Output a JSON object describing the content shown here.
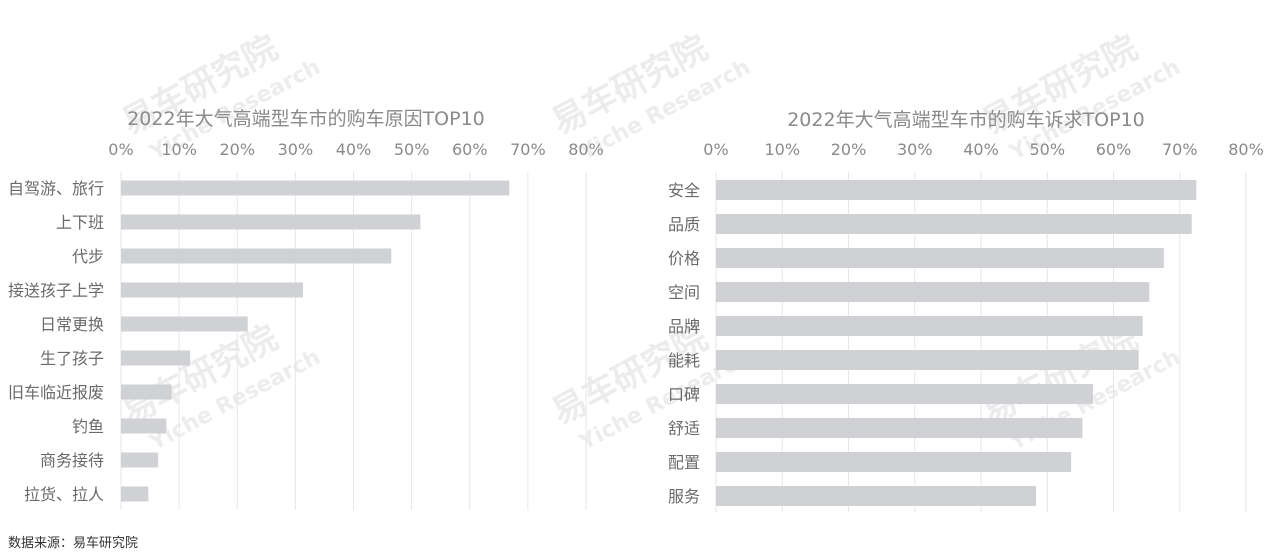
{
  "watermark": {
    "main": "易车研究院",
    "sub": "Yiche Research"
  },
  "source": "数据来源：易车研究院",
  "colors": {
    "bar": "#cfd1d4",
    "grid": "#e6e6e6",
    "text": "#8a8a8a"
  },
  "chart_data": [
    {
      "type": "bar",
      "orientation": "horizontal",
      "title": "2022年大气高端型车市的购车原因TOP10",
      "categories": [
        "自驾游、旅行",
        "上下班",
        "代步",
        "接送孩子上学",
        "日常更换",
        "生了孩子",
        "旧车临近报废",
        "钓鱼",
        "商务接待",
        "拉货、拉人"
      ],
      "values": [
        66.8,
        51.5,
        46.5,
        31.3,
        21.8,
        11.9,
        8.7,
        7.8,
        6.4,
        4.7
      ],
      "xticks": [
        "0%",
        "10%",
        "20%",
        "30%",
        "40%",
        "50%",
        "60%",
        "70%",
        "80%"
      ],
      "xlim": [
        0,
        80
      ],
      "xaxis_position": "top",
      "grid": true
    },
    {
      "type": "bar",
      "orientation": "horizontal",
      "title": "2022年大气高端型车市的购车诉求TOP10",
      "categories": [
        "安全",
        "品质",
        "价格",
        "空间",
        "品牌",
        "能耗",
        "口碑",
        "舒适",
        "配置",
        "服务"
      ],
      "values": [
        72.5,
        71.8,
        67.6,
        65.4,
        64.4,
        63.8,
        56.9,
        55.3,
        53.6,
        48.3
      ],
      "xticks": [
        "0%",
        "10%",
        "20%",
        "30%",
        "40%",
        "50%",
        "60%",
        "70%",
        "80%"
      ],
      "xlim": [
        0,
        80
      ],
      "xaxis_position": "top",
      "grid": true
    }
  ]
}
